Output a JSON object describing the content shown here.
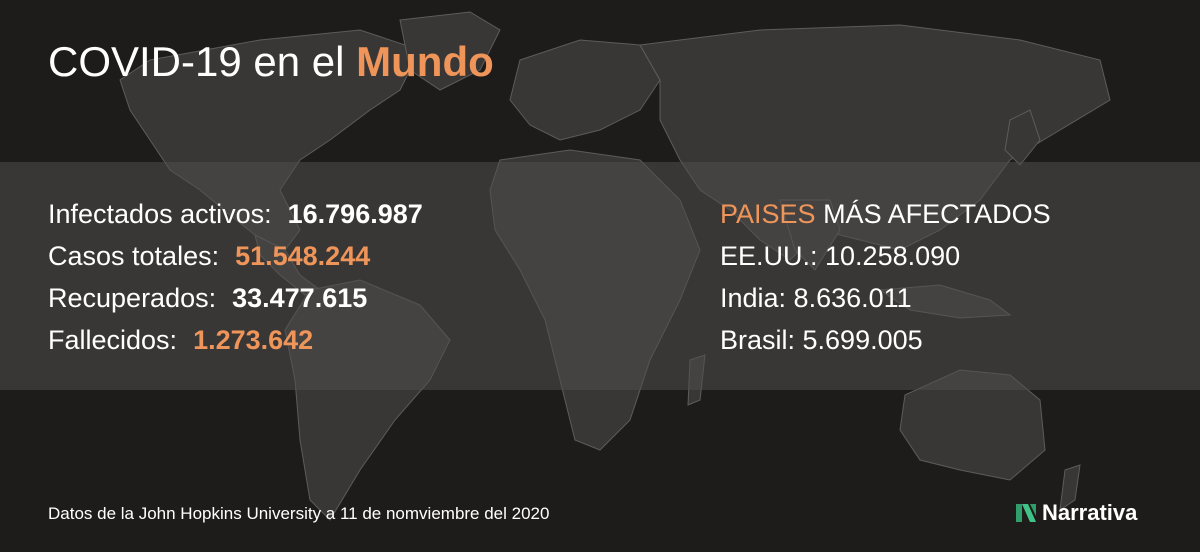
{
  "title": {
    "prefix": "COVID-19 en el",
    "highlight": "Mundo"
  },
  "stats": [
    {
      "label": "Infectados activos:",
      "value": "16.796.987",
      "color": "white"
    },
    {
      "label": "Casos totales:",
      "value": "51.548.244",
      "color": "orange"
    },
    {
      "label": "Recuperados:",
      "value": "33.477.615",
      "color": "white"
    },
    {
      "label": "Fallecidos:",
      "value": "1.273.642",
      "color": "orange"
    }
  ],
  "countries": {
    "heading_highlight": "PAISES",
    "heading_rest": "MÁS AFECTADOS",
    "items": [
      {
        "text": "EE.UU.: 10.258.090"
      },
      {
        "text": "India: 8.636.011"
      },
      {
        "text": "Brasil: 5.699.005"
      }
    ]
  },
  "footer": {
    "source": "Datos de la John Hopkins University a 11 de nomviembre del 2020"
  },
  "brand": {
    "name": "Narrativa",
    "logo_icon": "narrativa-logo-icon"
  },
  "colors": {
    "accent": "#f0955a",
    "background": "#1e1c1b",
    "map_land": "#3a3837",
    "map_border": "#6a6866"
  }
}
